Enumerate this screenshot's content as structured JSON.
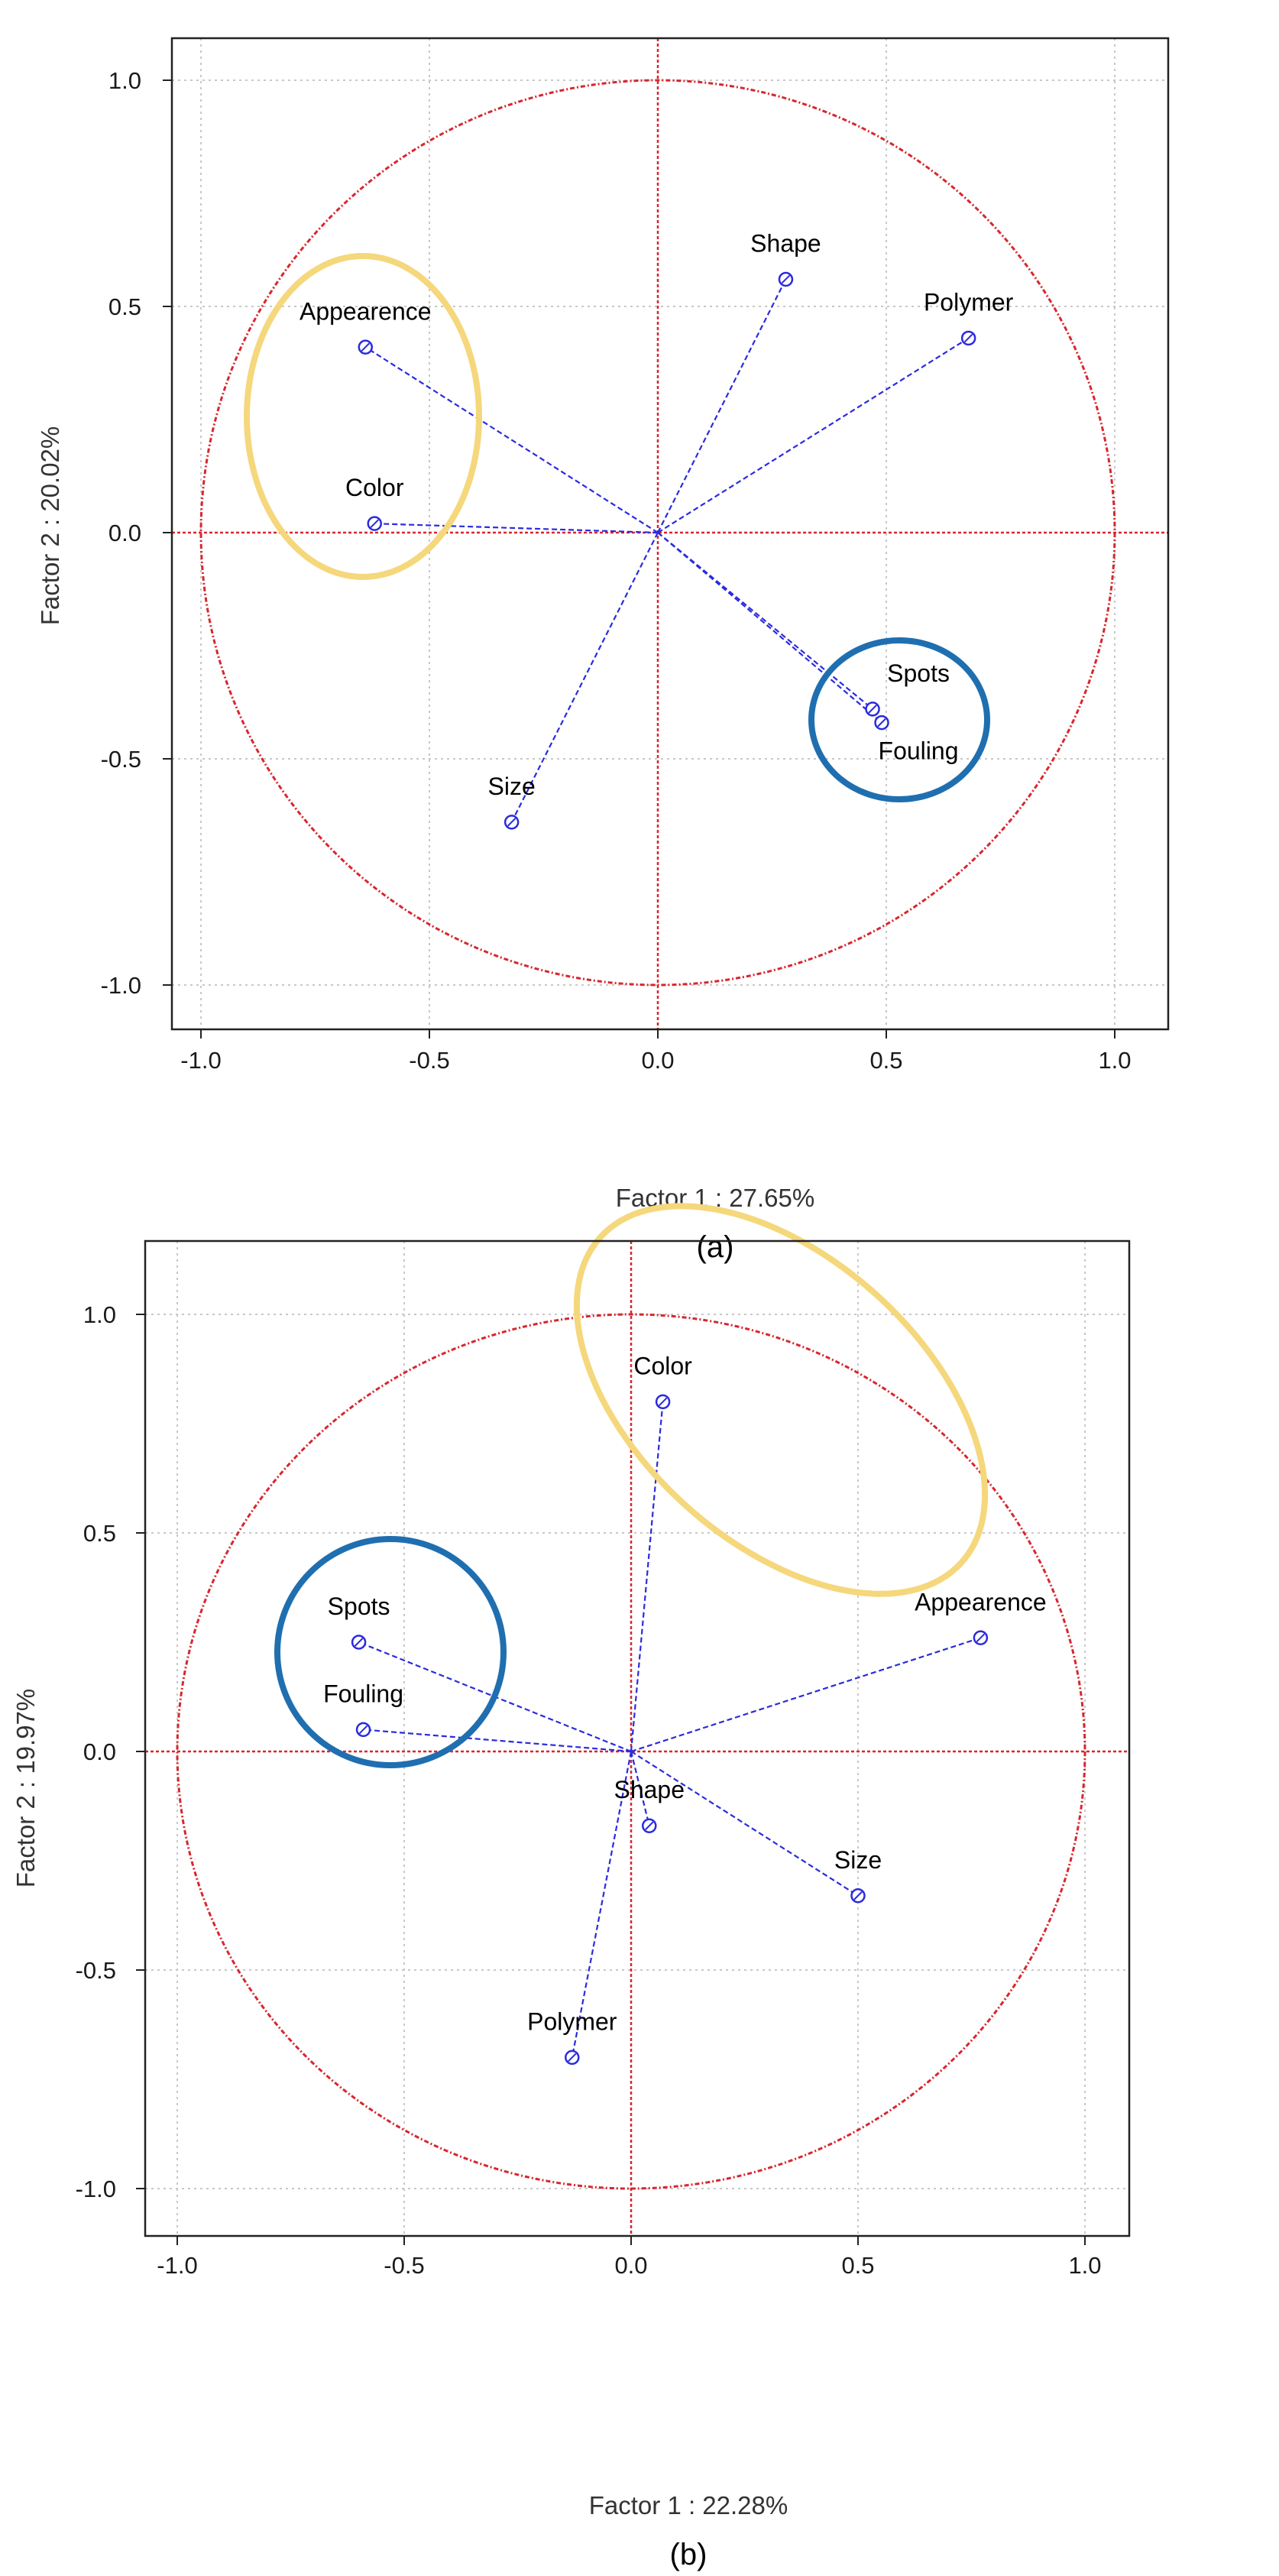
{
  "chart_data": [
    {
      "type": "scatter",
      "subtype": "pca-correlation-circle",
      "panel": "(a)",
      "xlabel": "Factor 1 : 27.65%",
      "ylabel": "Factor 2 : 20.02%",
      "xlim": [
        -1.1,
        1.1
      ],
      "ylim": [
        -1.1,
        1.1
      ],
      "xticks": [
        "-1.0",
        "-0.5",
        "0.0",
        "0.5",
        "1.0"
      ],
      "yticks": [
        "-1.0",
        "-0.5",
        "0.0",
        "0.5",
        "1.0"
      ],
      "grid": true,
      "points": [
        {
          "label": "Appearence",
          "x": -0.64,
          "y": 0.41
        },
        {
          "label": "Color",
          "x": -0.62,
          "y": 0.02
        },
        {
          "label": "Shape",
          "x": 0.28,
          "y": 0.56
        },
        {
          "label": "Polymer",
          "x": 0.68,
          "y": 0.43
        },
        {
          "label": "Spots",
          "x": 0.47,
          "y": -0.39
        },
        {
          "label": "Fouling",
          "x": 0.49,
          "y": -0.42
        },
        {
          "label": "Size",
          "x": -0.32,
          "y": -0.64
        }
      ],
      "highlights": [
        {
          "color": "#f5d77c",
          "members": [
            "Appearence",
            "Color"
          ]
        },
        {
          "color": "#1f6fb0",
          "members": [
            "Spots",
            "Fouling"
          ]
        }
      ]
    },
    {
      "type": "scatter",
      "subtype": "pca-correlation-circle",
      "panel": "(b)",
      "xlabel": "Factor 1 : 22.28%",
      "ylabel": "Factor 2 : 19.97%",
      "xlim": [
        -1.1,
        1.1
      ],
      "ylim": [
        -1.1,
        1.1
      ],
      "xticks": [
        "-1.0",
        "-0.5",
        "0.0",
        "0.5",
        "1.0"
      ],
      "yticks": [
        "-1.0",
        "-0.5",
        "0.0",
        "0.5",
        "1.0"
      ],
      "grid": true,
      "points": [
        {
          "label": "Color",
          "x": 0.07,
          "y": 0.8
        },
        {
          "label": "Appearence",
          "x": 0.77,
          "y": 0.26
        },
        {
          "label": "Spots",
          "x": -0.6,
          "y": 0.25
        },
        {
          "label": "Fouling",
          "x": -0.59,
          "y": 0.05
        },
        {
          "label": "Shape",
          "x": 0.04,
          "y": -0.17
        },
        {
          "label": "Size",
          "x": 0.5,
          "y": -0.33
        },
        {
          "label": "Polymer",
          "x": -0.13,
          "y": -0.7
        }
      ],
      "highlights": [
        {
          "color": "#f5d77c",
          "members": [
            "Color",
            "Appearence"
          ]
        },
        {
          "color": "#1f6fb0",
          "members": [
            "Spots",
            "Fouling"
          ]
        }
      ]
    }
  ],
  "colors": {
    "circle": "#d8262d",
    "axes": "#d8262d",
    "vector": "#2b2bdd",
    "grid": "#c8c8c8",
    "yellow_highlight": "#f5d77c",
    "blue_highlight": "#1f6fb0"
  }
}
